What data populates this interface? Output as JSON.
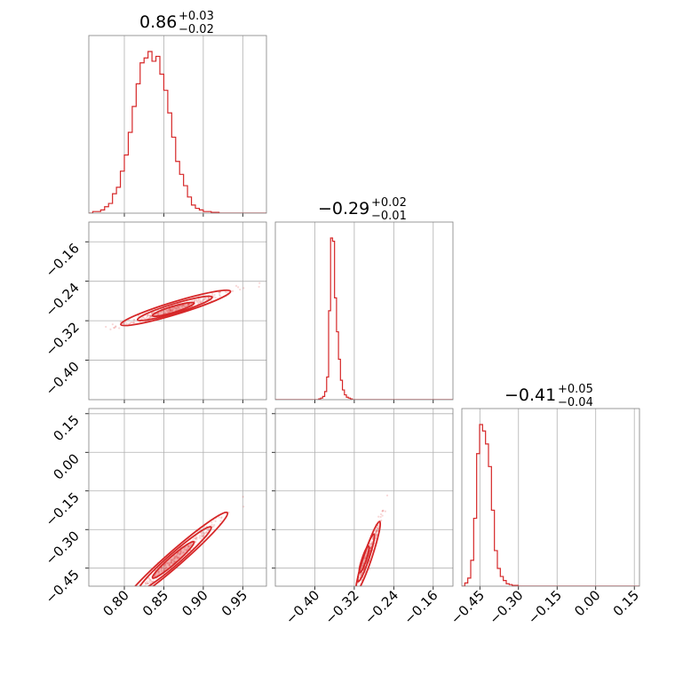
{
  "chart_data": {
    "type": "corner",
    "color": "#d62728",
    "grid": true,
    "parameters": [
      {
        "range": [
          0.755,
          0.98
        ],
        "ticks": [
          0.8,
          0.85,
          0.9,
          0.95
        ],
        "tick_labels": [
          "0.80",
          "0.85",
          "0.90",
          "0.95"
        ],
        "title": {
          "median": "0.86",
          "plus": "+0.03",
          "minus": "−0.02"
        },
        "histogram": {
          "bin_edges_start": 0.755,
          "bin_width": 0.005,
          "counts": [
            0,
            0.01,
            0.01,
            0.02,
            0.04,
            0.06,
            0.12,
            0.16,
            0.26,
            0.36,
            0.5,
            0.66,
            0.8,
            0.93,
            0.96,
            1.0,
            0.94,
            0.97,
            0.86,
            0.76,
            0.62,
            0.47,
            0.32,
            0.24,
            0.17,
            0.1,
            0.05,
            0.03,
            0.02,
            0.01,
            0.01,
            0.005,
            0.005,
            0,
            0,
            0,
            0,
            0,
            0,
            0,
            0,
            0,
            0,
            0,
            0
          ]
        }
      },
      {
        "range": [
          -0.48,
          -0.12
        ],
        "ticks": [
          -0.4,
          -0.32,
          -0.24,
          -0.16
        ],
        "tick_labels": [
          "−0.40",
          "−0.32",
          "−0.24",
          "−0.16"
        ],
        "title": {
          "median": "−0.29",
          "plus": "+0.02",
          "minus": "−0.01"
        },
        "histogram": {
          "bin_edges_start": -0.48,
          "bin_width": 0.004,
          "counts": [
            0,
            0,
            0,
            0,
            0,
            0,
            0,
            0,
            0,
            0,
            0,
            0,
            0,
            0,
            0,
            0,
            0,
            0,
            0,
            0,
            0,
            0,
            0.005,
            0.01,
            0.02,
            0.05,
            0.14,
            0.55,
            1.0,
            0.98,
            0.63,
            0.42,
            0.25,
            0.12,
            0.06,
            0.03,
            0.015,
            0.01,
            0.005,
            0,
            0,
            0,
            0,
            0,
            0,
            0,
            0,
            0,
            0,
            0,
            0,
            0,
            0,
            0,
            0,
            0,
            0,
            0,
            0,
            0,
            0,
            0,
            0,
            0,
            0,
            0,
            0,
            0,
            0,
            0,
            0,
            0,
            0,
            0,
            0,
            0,
            0,
            0,
            0,
            0,
            0,
            0,
            0,
            0,
            0,
            0,
            0,
            0,
            0,
            0
          ]
        }
      },
      {
        "range": [
          -0.52,
          0.17
        ],
        "ticks": [
          -0.45,
          -0.3,
          -0.15,
          0.0,
          0.15
        ],
        "tick_labels": [
          "−0.45",
          "−0.30",
          "−0.15",
          "0.00",
          "0.15"
        ],
        "title": {
          "median": "−0.41",
          "plus": "+0.05",
          "minus": "−0.04"
        },
        "histogram": {
          "bin_edges_start": -0.52,
          "bin_width": 0.0115,
          "counts": [
            0,
            0.02,
            0.05,
            0.16,
            0.42,
            0.82,
            1.0,
            0.96,
            0.88,
            0.74,
            0.47,
            0.22,
            0.11,
            0.06,
            0.035,
            0.015,
            0.01,
            0.005,
            0.005,
            0,
            0,
            0,
            0,
            0,
            0,
            0,
            0,
            0,
            0,
            0,
            0,
            0,
            0,
            0,
            0,
            0,
            0,
            0,
            0,
            0,
            0,
            0,
            0,
            0,
            0,
            0,
            0,
            0,
            0,
            0,
            0,
            0,
            0,
            0,
            0,
            0,
            0,
            0,
            0,
            0
          ]
        }
      }
    ],
    "pairs": [
      {
        "x_param": 0,
        "y_param": 1,
        "contours": [
          {
            "x_center": 0.865,
            "y_center": -0.294,
            "direction": [
              0.0695,
              0.0337
            ],
            "semi_major": 1.0,
            "semi_minor": 0.00035
          },
          {
            "x_center": 0.864,
            "y_center": -0.295,
            "direction": [
              0.0695,
              0.0337
            ],
            "semi_major": 0.68,
            "semi_minor": 0.00023
          },
          {
            "x_center": 0.862,
            "y_center": -0.297,
            "direction": [
              0.0695,
              0.0337
            ],
            "semi_major": 0.38,
            "semi_minor": 0.00013
          }
        ],
        "scatter_extent": {
          "x": [
            0.76,
            0.955
          ],
          "y": [
            -0.42,
            -0.245
          ]
        }
      },
      {
        "x_param": 0,
        "y_param": 2,
        "contours": [
          {
            "x_center": 0.865,
            "y_center": -0.41,
            "direction": [
              0.0655,
              0.1755
            ],
            "semi_major": 1.0,
            "semi_minor": 0.0003
          },
          {
            "x_center": 0.864,
            "y_center": -0.413,
            "direction": [
              0.0655,
              0.1755
            ],
            "semi_major": 0.7,
            "semi_minor": 0.0002
          },
          {
            "x_center": 0.862,
            "y_center": -0.418,
            "direction": [
              0.0655,
              0.1755
            ],
            "semi_major": 0.4,
            "semi_minor": 0.00012
          }
        ],
        "scatter_extent": {
          "x": [
            0.76,
            0.955
          ],
          "y": [
            -0.5,
            -0.22
          ]
        }
      },
      {
        "x_param": 1,
        "y_param": 2,
        "contours": [
          {
            "x_center": -0.292,
            "y_center": -0.404,
            "direction": [
              0.0235,
              0.1355
            ],
            "semi_major": 1.0,
            "semi_minor": 0.00035
          },
          {
            "x_center": -0.296,
            "y_center": -0.41,
            "direction": [
              0.0235,
              0.1355
            ],
            "semi_major": 0.68,
            "semi_minor": 0.00025
          },
          {
            "x_center": -0.3,
            "y_center": -0.416,
            "direction": [
              0.0235,
              0.1355
            ],
            "semi_major": 0.38,
            "semi_minor": 0.00014
          }
        ],
        "scatter_extent": {
          "x": [
            -0.46,
            -0.22
          ],
          "y": [
            -0.5,
            -0.2
          ]
        }
      }
    ]
  }
}
